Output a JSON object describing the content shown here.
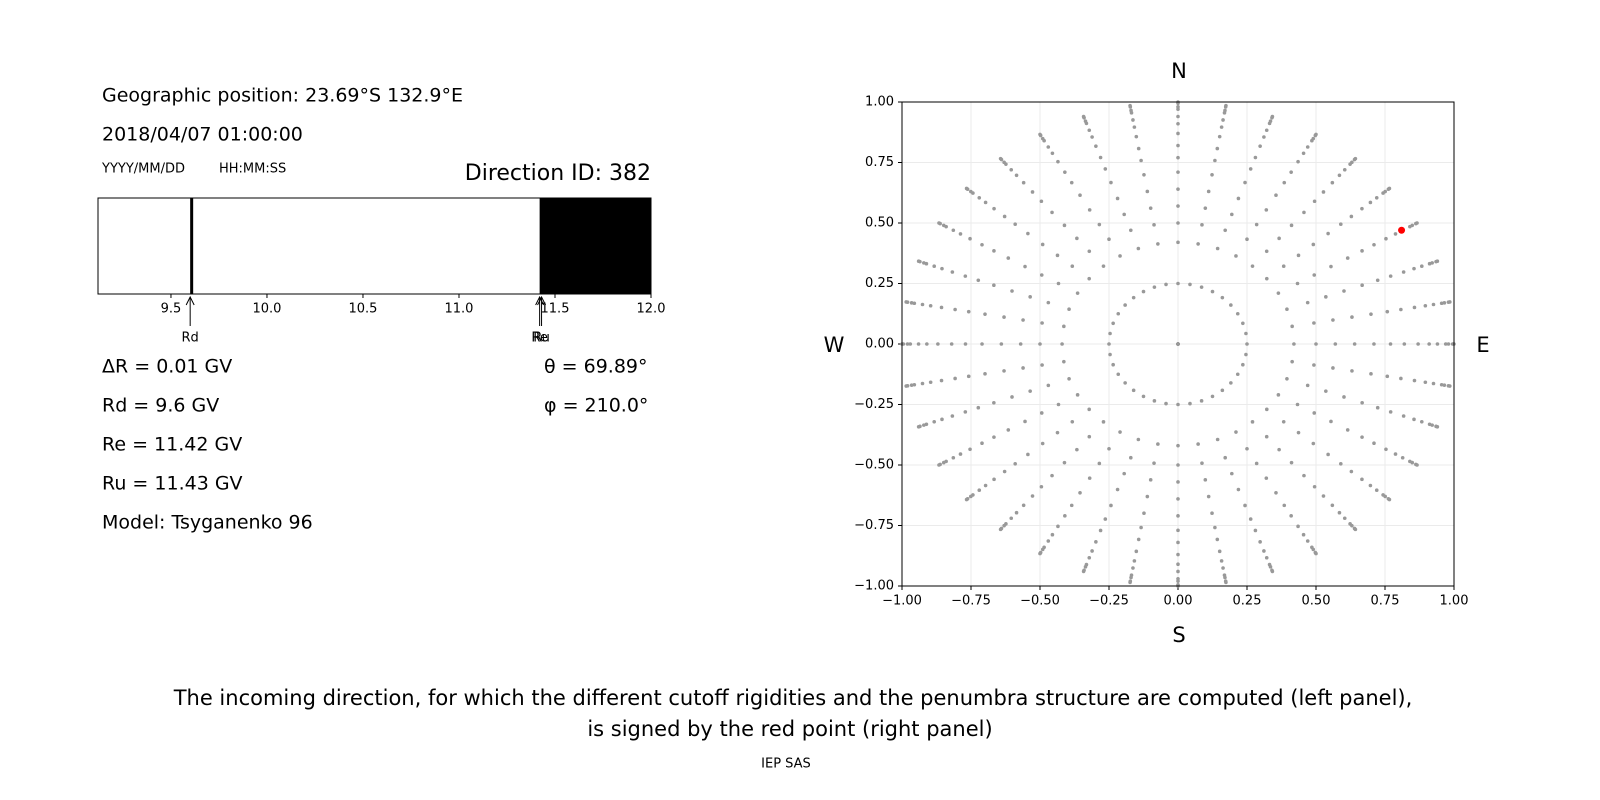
{
  "chart_data": [
    {
      "type": "penumbra",
      "annotations": {
        "position": "Geographic position: 23.69°S 132.9°E",
        "datetime": "2018/04/07 01:00:00",
        "date_format": "YYYY/MM/DD",
        "time_format": "HH:MM:SS",
        "direction": "Direction ID: 382",
        "delta": "ΔR = 0.01 GV",
        "theta": "θ = 69.89°",
        "phi": "φ = 210.0°",
        "rd": "Rd = 9.6 GV",
        "re": "Re = 11.42 GV",
        "ru": "Ru = 11.43 GV",
        "model": "Model: Tsyganenko 96"
      },
      "xlim": [
        9.12,
        12.0
      ],
      "xticks": [
        9.5,
        {
          "value": 10,
          "label": "10.0"
        },
        10.5,
        {
          "value": 11,
          "label": "11.0"
        },
        11.5,
        {
          "value": 12,
          "label": "12.0"
        }
      ],
      "band_starts": [
        9.6,
        11.42
      ],
      "band_ends": [
        9.61,
        12.0
      ],
      "color": "#000000",
      "markers": [
        {
          "label": "Rd",
          "value": 9.6
        },
        {
          "label": "Re",
          "value": 11.42
        },
        {
          "label": "Ru",
          "value": 11.43
        }
      ]
    },
    {
      "type": "scatter",
      "annotations": {
        "north": "N",
        "south": "S",
        "west": "W",
        "east": "E"
      },
      "xlim": [
        -1,
        1
      ],
      "ylim": [
        -1,
        1
      ],
      "xticks": [
        {
          "value": -1,
          "label": "−1.00"
        },
        {
          "value": -0.75,
          "label": "−0.75"
        },
        {
          "value": -0.5,
          "label": "−0.50"
        },
        {
          "value": -0.25,
          "label": "−0.25"
        },
        {
          "value": 0,
          "label": "0.00"
        },
        {
          "value": 0.25,
          "label": "0.25"
        },
        {
          "value": 0.5,
          "label": "0.50"
        },
        {
          "value": 0.75,
          "label": "0.75"
        },
        {
          "value": 1,
          "label": "1.00"
        }
      ],
      "yticks": [
        {
          "value": -1,
          "label": "−1.00"
        },
        {
          "value": -0.75,
          "label": "−0.75"
        },
        {
          "value": -0.5,
          "label": "−0.50"
        },
        {
          "value": -0.25,
          "label": "−0.25"
        },
        {
          "value": 0,
          "label": "0.00"
        },
        {
          "value": 0.25,
          "label": "0.25"
        },
        {
          "value": 0.5,
          "label": "0.50"
        },
        {
          "value": 0.75,
          "label": "0.75"
        },
        {
          "value": 1,
          "label": "1.00"
        }
      ],
      "grid": true,
      "color": "#999999",
      "azimuths": [
        0,
        10,
        20,
        30,
        40,
        50,
        60,
        70,
        80,
        90,
        100,
        110,
        120,
        130,
        140,
        150,
        160,
        170,
        180,
        190,
        200,
        210,
        220,
        230,
        240,
        250,
        260,
        270,
        280,
        290,
        300,
        310,
        320,
        330,
        340,
        350
      ],
      "radii": [
        0,
        0.25,
        0.42,
        0.5,
        0.57,
        0.64,
        0.71,
        0.77,
        0.82,
        0.87,
        0.91,
        0.94,
        0.97,
        0.98,
        0.995,
        1.0
      ],
      "highlight": {
        "x": 0.81,
        "y": 0.47,
        "color": "#ff0000"
      }
    }
  ],
  "caption": [
    "The incoming direction, for which the different cutoff rigidities and the penumbra structure are computed (left panel),",
    "is signed by the red point (right panel)"
  ],
  "footer": "IEP SAS"
}
